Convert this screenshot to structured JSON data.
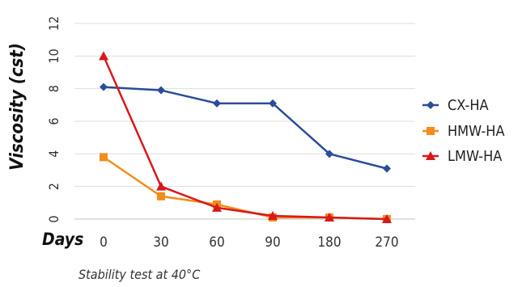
{
  "chart_data": {
    "type": "line",
    "ylabel": "Viscosity (cst)",
    "xlabel": "Days",
    "caption": "Stability test at 40°C",
    "categories": [
      "0",
      "30",
      "60",
      "90",
      "180",
      "270"
    ],
    "ylim": [
      0,
      12
    ],
    "yticks": [
      0,
      2,
      4,
      6,
      8,
      10,
      12
    ],
    "grid": true,
    "legend_position": "right",
    "series": [
      {
        "name": "CX-HA",
        "color": "#2a4c9a",
        "marker": "diamond",
        "values": [
          8.1,
          7.9,
          7.1,
          7.1,
          4.0,
          3.1
        ]
      },
      {
        "name": "HMW-HA",
        "color": "#f28c1a",
        "marker": "square",
        "values": [
          3.8,
          1.4,
          0.9,
          0.1,
          0.1,
          0.0
        ]
      },
      {
        "name": "LMW-HA",
        "color": "#d7191c",
        "marker": "triangle",
        "values": [
          10.0,
          2.0,
          0.7,
          0.2,
          0.1,
          0.0
        ]
      }
    ]
  }
}
